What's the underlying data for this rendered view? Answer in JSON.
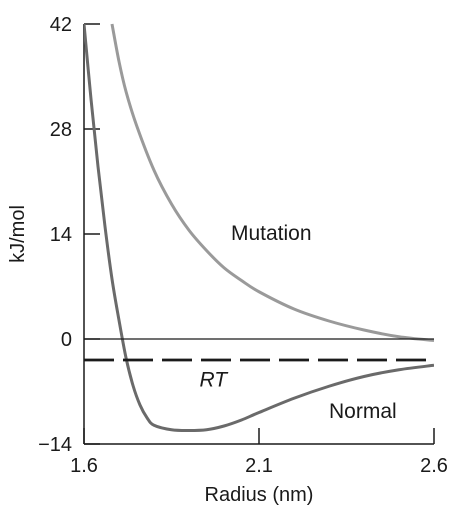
{
  "chart_data": {
    "type": "line",
    "title": "",
    "xlabel": "Radius (nm)",
    "ylabel": "kJ/mol",
    "xlim": [
      1.6,
      2.6
    ],
    "ylim": [
      -14,
      42
    ],
    "x_ticks": [
      1.6,
      2.1,
      2.6
    ],
    "x_tick_labels": [
      "1.6",
      "2.1",
      "2.6"
    ],
    "y_ticks": [
      -14,
      0,
      14,
      28,
      42
    ],
    "y_tick_labels": [
      "−14",
      "0",
      "14",
      "28",
      "42"
    ],
    "grid": false,
    "legend": "none",
    "series": [
      {
        "name": "Mutation",
        "color": "#9a9a9a",
        "x": [
          1.68,
          1.7,
          1.72,
          1.75,
          1.8,
          1.85,
          1.9,
          1.95,
          2.0,
          2.05,
          2.1,
          2.2,
          2.3,
          2.4,
          2.5,
          2.6
        ],
        "y": [
          42,
          37,
          33,
          28.5,
          22.5,
          18,
          14.5,
          11.8,
          9.5,
          7.8,
          6.3,
          4.0,
          2.4,
          1.2,
          0.3,
          -0.2
        ]
      },
      {
        "name": "Normal",
        "color": "#6a6a6a",
        "x": [
          1.6,
          1.62,
          1.64,
          1.66,
          1.68,
          1.7,
          1.72,
          1.74,
          1.76,
          1.78,
          1.8,
          1.85,
          1.9,
          1.95,
          2.0,
          2.05,
          2.1,
          2.2,
          2.3,
          2.4,
          2.5,
          2.6
        ],
        "y": [
          42,
          32,
          23,
          15,
          8,
          2.5,
          -2.5,
          -6.2,
          -8.8,
          -10.5,
          -11.5,
          -12.1,
          -12.2,
          -12.1,
          -11.6,
          -10.8,
          -9.8,
          -7.9,
          -6.3,
          -5.0,
          -4.1,
          -3.5
        ]
      },
      {
        "name": "RT",
        "color": "#1a1a1a",
        "style": "dashed",
        "x": [
          1.6,
          2.6
        ],
        "y": [
          -2.8,
          -2.8
        ]
      },
      {
        "name": "zero-line",
        "color": "#1a1a1a",
        "x": [
          1.6,
          2.6
        ],
        "y": [
          0,
          0
        ]
      }
    ],
    "annotations": [
      {
        "text": "Mutation",
        "x": 2.02,
        "y": 13.2
      },
      {
        "text": "RT",
        "x": 1.93,
        "y": -6.3,
        "italic": true
      },
      {
        "text": "Normal",
        "x": 2.3,
        "y": -10.5
      }
    ]
  }
}
